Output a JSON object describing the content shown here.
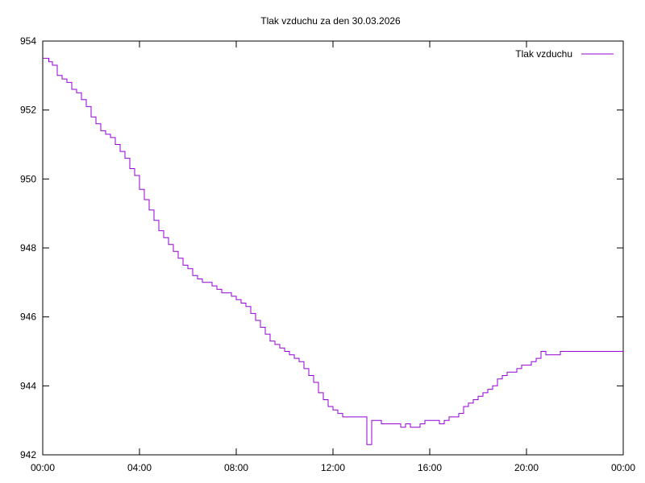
{
  "chart_data": {
    "type": "line",
    "title": "Tlak vzduchu za den 30.03.2026",
    "xlabel": "",
    "ylabel": "",
    "x_tick_labels": [
      "00:00",
      "04:00",
      "08:00",
      "12:00",
      "16:00",
      "20:00",
      "00:00"
    ],
    "x_range_hours": [
      0,
      24
    ],
    "ylim": [
      942,
      954
    ],
    "y_tick_labels": [
      "942",
      "944",
      "946",
      "948",
      "950",
      "952",
      "954"
    ],
    "y_ticks": [
      942,
      944,
      946,
      948,
      950,
      952,
      954
    ],
    "grid": false,
    "legend_position": "top-right",
    "series": [
      {
        "name": "Tlak vzduchu",
        "color": "#9400d3",
        "x_hours": [
          0.0,
          0.1,
          0.25,
          0.4,
          0.6,
          0.8,
          1.0,
          1.2,
          1.4,
          1.6,
          1.8,
          2.0,
          2.2,
          2.4,
          2.6,
          2.8,
          3.0,
          3.2,
          3.4,
          3.6,
          3.8,
          4.0,
          4.2,
          4.4,
          4.6,
          4.8,
          5.0,
          5.2,
          5.4,
          5.6,
          5.8,
          6.0,
          6.2,
          6.4,
          6.6,
          6.8,
          7.0,
          7.2,
          7.4,
          7.6,
          7.8,
          8.0,
          8.2,
          8.4,
          8.6,
          8.8,
          9.0,
          9.2,
          9.4,
          9.6,
          9.8,
          10.0,
          10.2,
          10.4,
          10.6,
          10.8,
          11.0,
          11.2,
          11.4,
          11.6,
          11.8,
          12.0,
          12.2,
          12.4,
          12.6,
          12.8,
          13.0,
          13.2,
          13.4,
          13.6,
          13.8,
          14.0,
          14.2,
          14.4,
          14.6,
          14.8,
          15.0,
          15.2,
          15.4,
          15.5,
          15.55,
          15.6,
          15.7,
          15.8,
          16.0,
          16.2,
          16.4,
          16.6,
          16.8,
          17.0,
          17.2,
          17.4,
          17.6,
          17.8,
          18.0,
          18.2,
          18.4,
          18.6,
          18.8,
          19.0,
          19.2,
          19.4,
          19.6,
          19.8,
          20.0,
          20.2,
          20.4,
          20.6,
          20.8,
          21.0,
          21.2,
          21.4,
          21.6,
          21.8,
          22.0,
          22.2,
          22.4,
          22.6,
          22.8,
          23.0,
          23.2,
          23.4,
          23.6,
          23.8,
          24.0
        ],
        "values": [
          953.5,
          953.5,
          953.4,
          953.3,
          953.0,
          952.9,
          952.8,
          952.6,
          952.5,
          952.3,
          952.1,
          951.8,
          951.6,
          951.4,
          951.3,
          951.2,
          951.0,
          950.8,
          950.6,
          950.3,
          950.1,
          949.7,
          949.4,
          949.1,
          948.8,
          948.5,
          948.3,
          948.1,
          947.9,
          947.7,
          947.5,
          947.4,
          947.2,
          947.1,
          947.0,
          947.0,
          946.9,
          946.8,
          946.7,
          946.7,
          946.6,
          946.5,
          946.4,
          946.3,
          946.1,
          945.9,
          945.7,
          945.5,
          945.3,
          945.2,
          945.1,
          945.0,
          944.9,
          944.8,
          944.7,
          944.5,
          944.3,
          944.1,
          943.8,
          943.6,
          943.4,
          943.3,
          943.2,
          943.1,
          943.1,
          943.1,
          943.1,
          943.1,
          942.3,
          943.0,
          943.0,
          942.9,
          942.9,
          942.9,
          942.9,
          942.8,
          942.9,
          942.8,
          942.8,
          942.8,
          942.8,
          942.9,
          942.9,
          943.0,
          943.0,
          943.0,
          942.9,
          943.0,
          943.1,
          943.1,
          943.2,
          943.4,
          943.5,
          943.6,
          943.7,
          943.8,
          943.9,
          944.0,
          944.2,
          944.3,
          944.4,
          944.4,
          944.5,
          944.6,
          944.6,
          944.7,
          944.8,
          945.0,
          944.9,
          944.9,
          944.9,
          945.0,
          945.0,
          945.0,
          945.0,
          945.0,
          945.0,
          945.0,
          945.0,
          945.0,
          945.0,
          945.0,
          945.0,
          945.0,
          945.0
        ]
      }
    ]
  }
}
